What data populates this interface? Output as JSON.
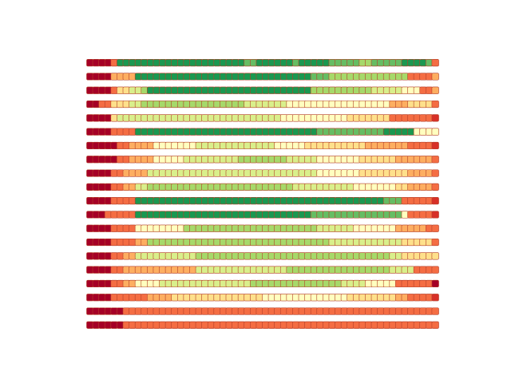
{
  "chart_data": {
    "type": "heatmap",
    "colorscale": [
      "#a50026",
      "#d73027",
      "#f46d43",
      "#fdae61",
      "#fee08b",
      "#ffffbf",
      "#d9ef8b",
      "#a6d96a",
      "#66bd63",
      "#1a9850",
      "#006837"
    ],
    "cell_edge_color": "#b5402a",
    "value_range": [
      0,
      10
    ],
    "rows": [
      "0000299999999999999999999988999999899999888887788888999982",
      "0000333399999999999999999999999999999888777777777777722223",
      "0000244667999999999999999999999999999777777777766666555223",
      "0022444667777777777777777766666665555555555555555533344442",
      "0000466666666666666666666666666655555555555444444422222221",
      "0000222299999999999999999999999999999988888888888999995555",
      "0000022333355555556666666666666555554444444444333333322221",
      "0000022333355555666666666777777776666655555554444443333332",
      "0000223333666666666666666666666666666655555554444444433332",
      "0000223366777777777777777777777777666666666655555554433332",
      "0000222299999999999999999999999999999999999999999888222221",
      "0002222299999999999999999999999999999888888888888888522221",
      "0000222255555555777777777777777777777766666655555553333322",
      "0000222233777777777777777777777777777777666666666666444442",
      "0000223366666666667777777777777777777777777777777766444444",
      "0000223333333333336666666666666667777777777777777766662222",
      "0000223355556666666666666667777777777777776666555552222220",
      "0000222222333344444444444444455555555555555444444443322221",
      "0000002222222222222222222222222222222222222222222222222222",
      "0000002222222222222222222222222222222222222222222222222222"
    ]
  }
}
